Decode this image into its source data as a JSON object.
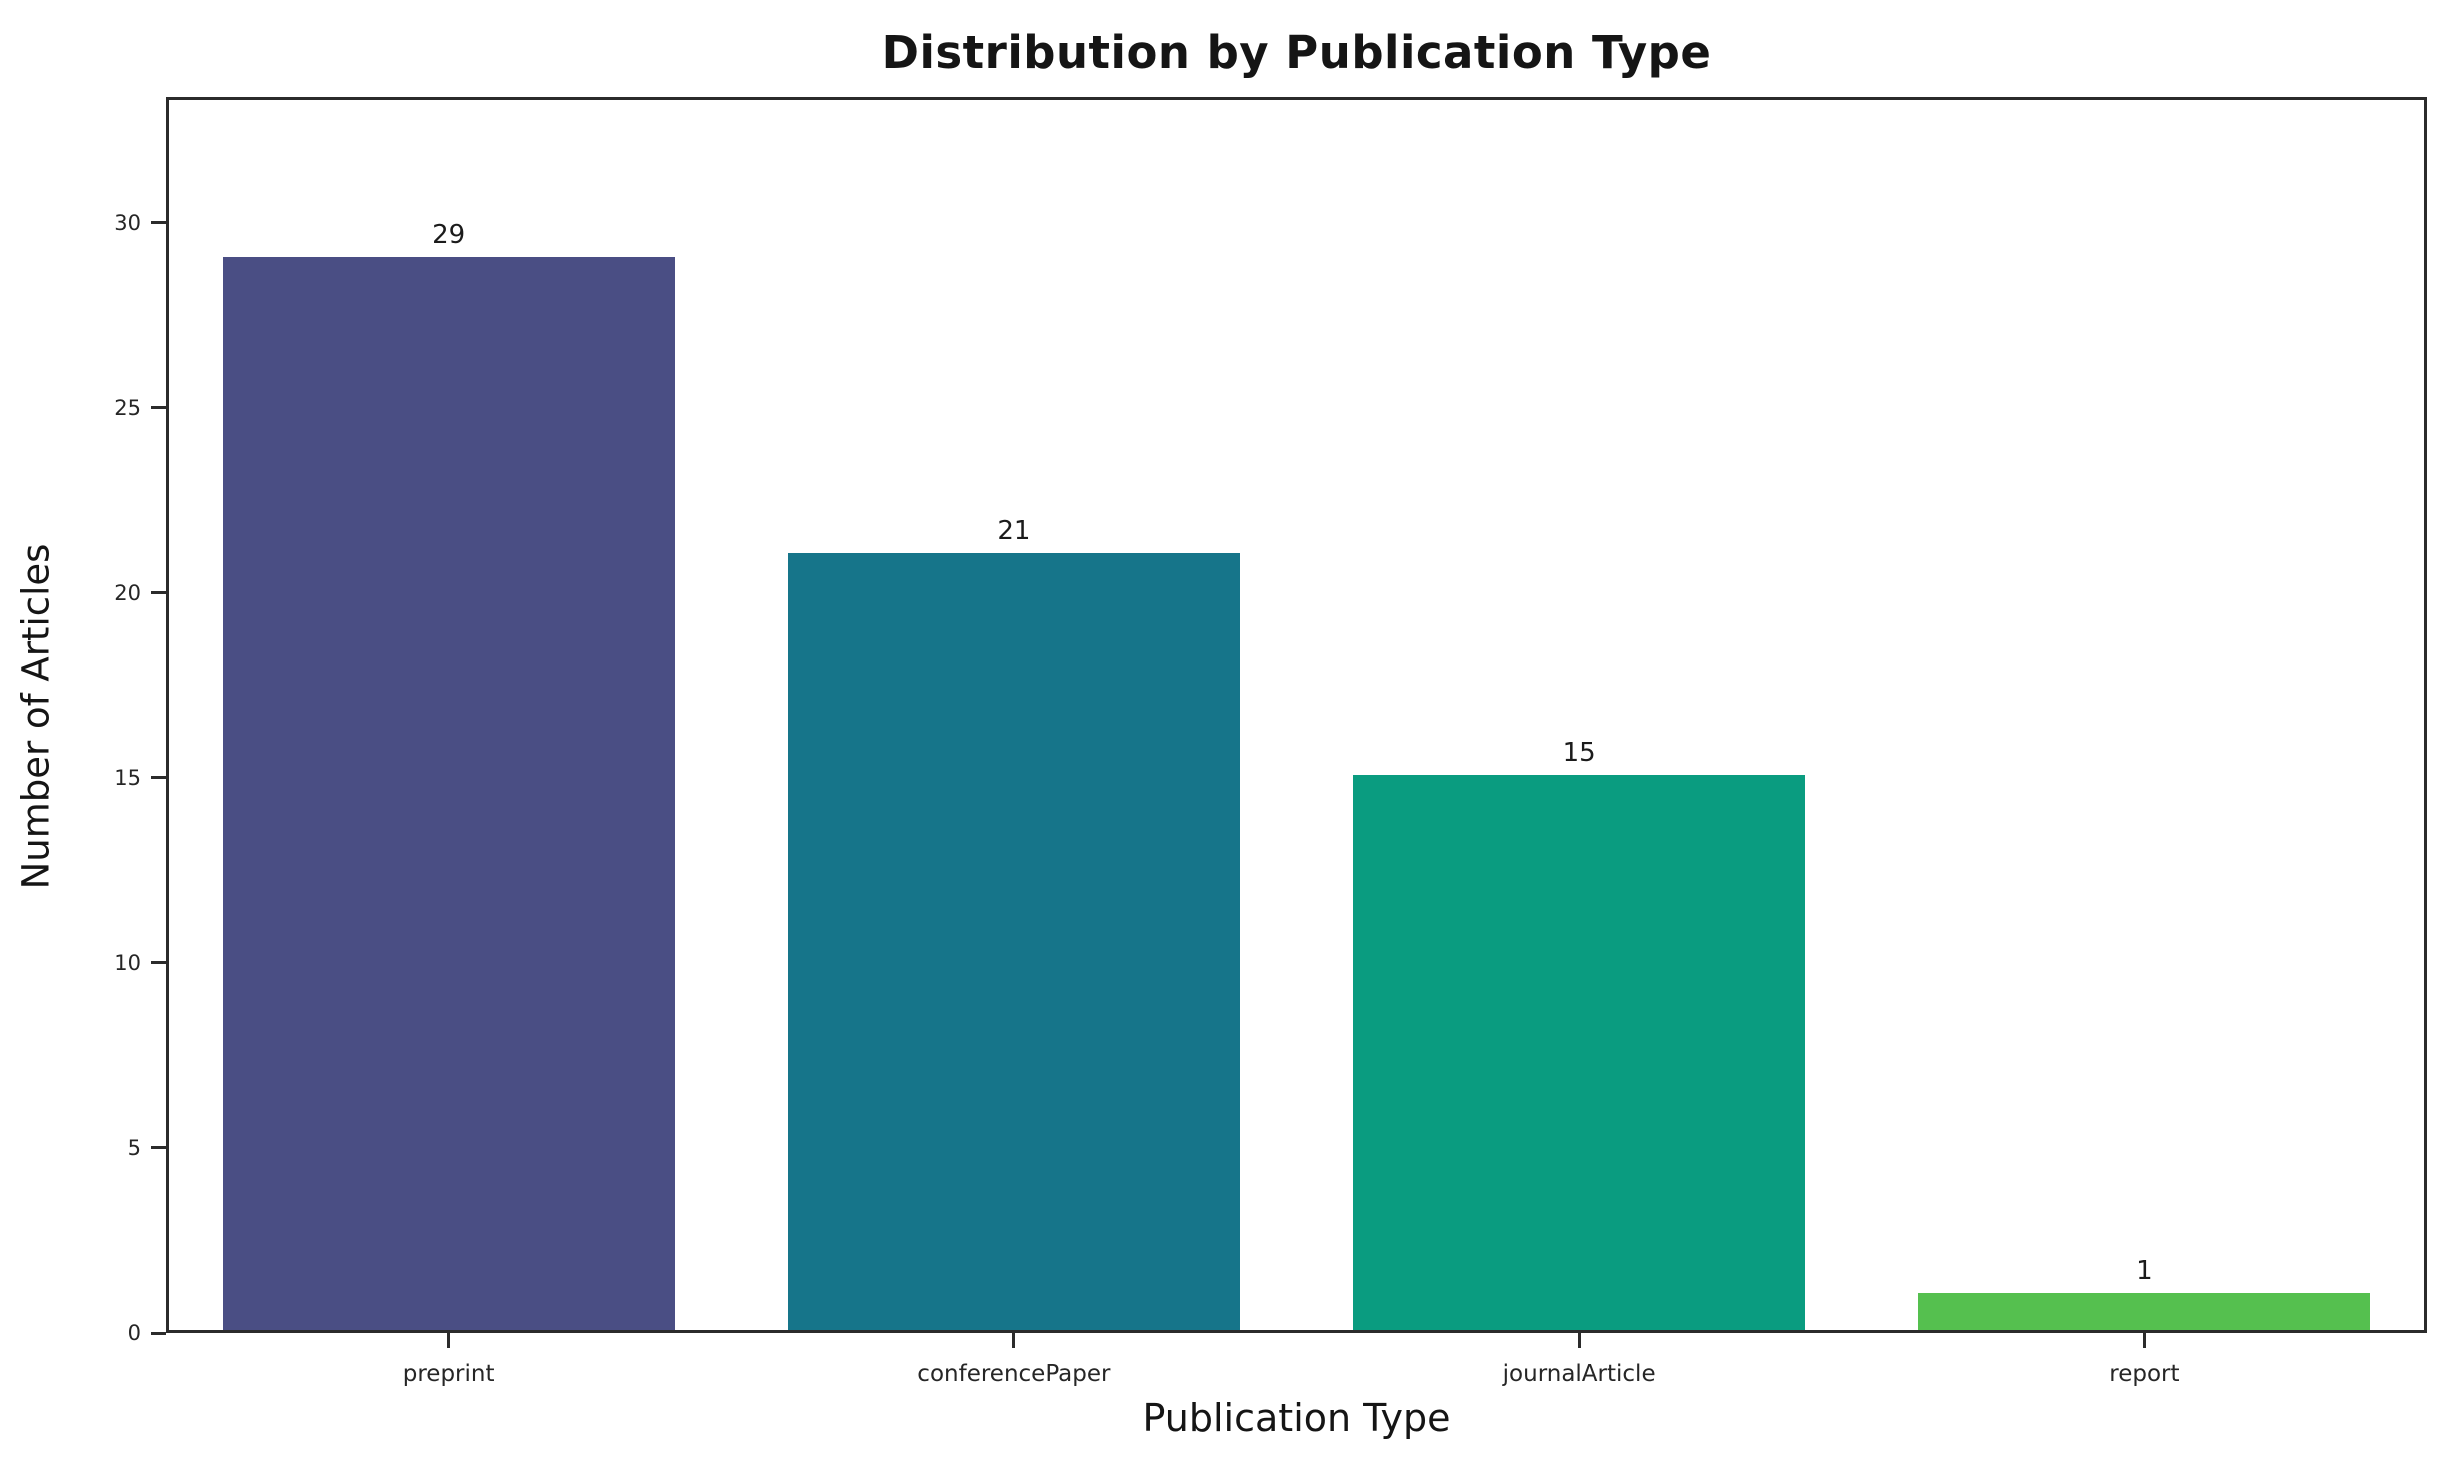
{
  "chart_data": {
    "type": "bar",
    "title": "Distribution by Publication Type",
    "xlabel": "Publication Type",
    "ylabel": "Number of Articles",
    "categories": [
      "preprint",
      "conferencePaper",
      "journalArticle",
      "report"
    ],
    "values": [
      29,
      21,
      15,
      1
    ],
    "value_labels": [
      "29",
      "21",
      "15",
      "1"
    ],
    "bar_colors": [
      "#4a4e84",
      "#16758a",
      "#0a9c80",
      "#55c04f"
    ],
    "yticks": [
      0,
      5,
      10,
      15,
      20,
      25,
      30
    ],
    "ylim": [
      0,
      33.4
    ],
    "bar_width_fraction": 0.8,
    "grid": false,
    "legend_position": "none",
    "axis_color": "#2b2b2b",
    "text_color": "#1b1b1b"
  }
}
